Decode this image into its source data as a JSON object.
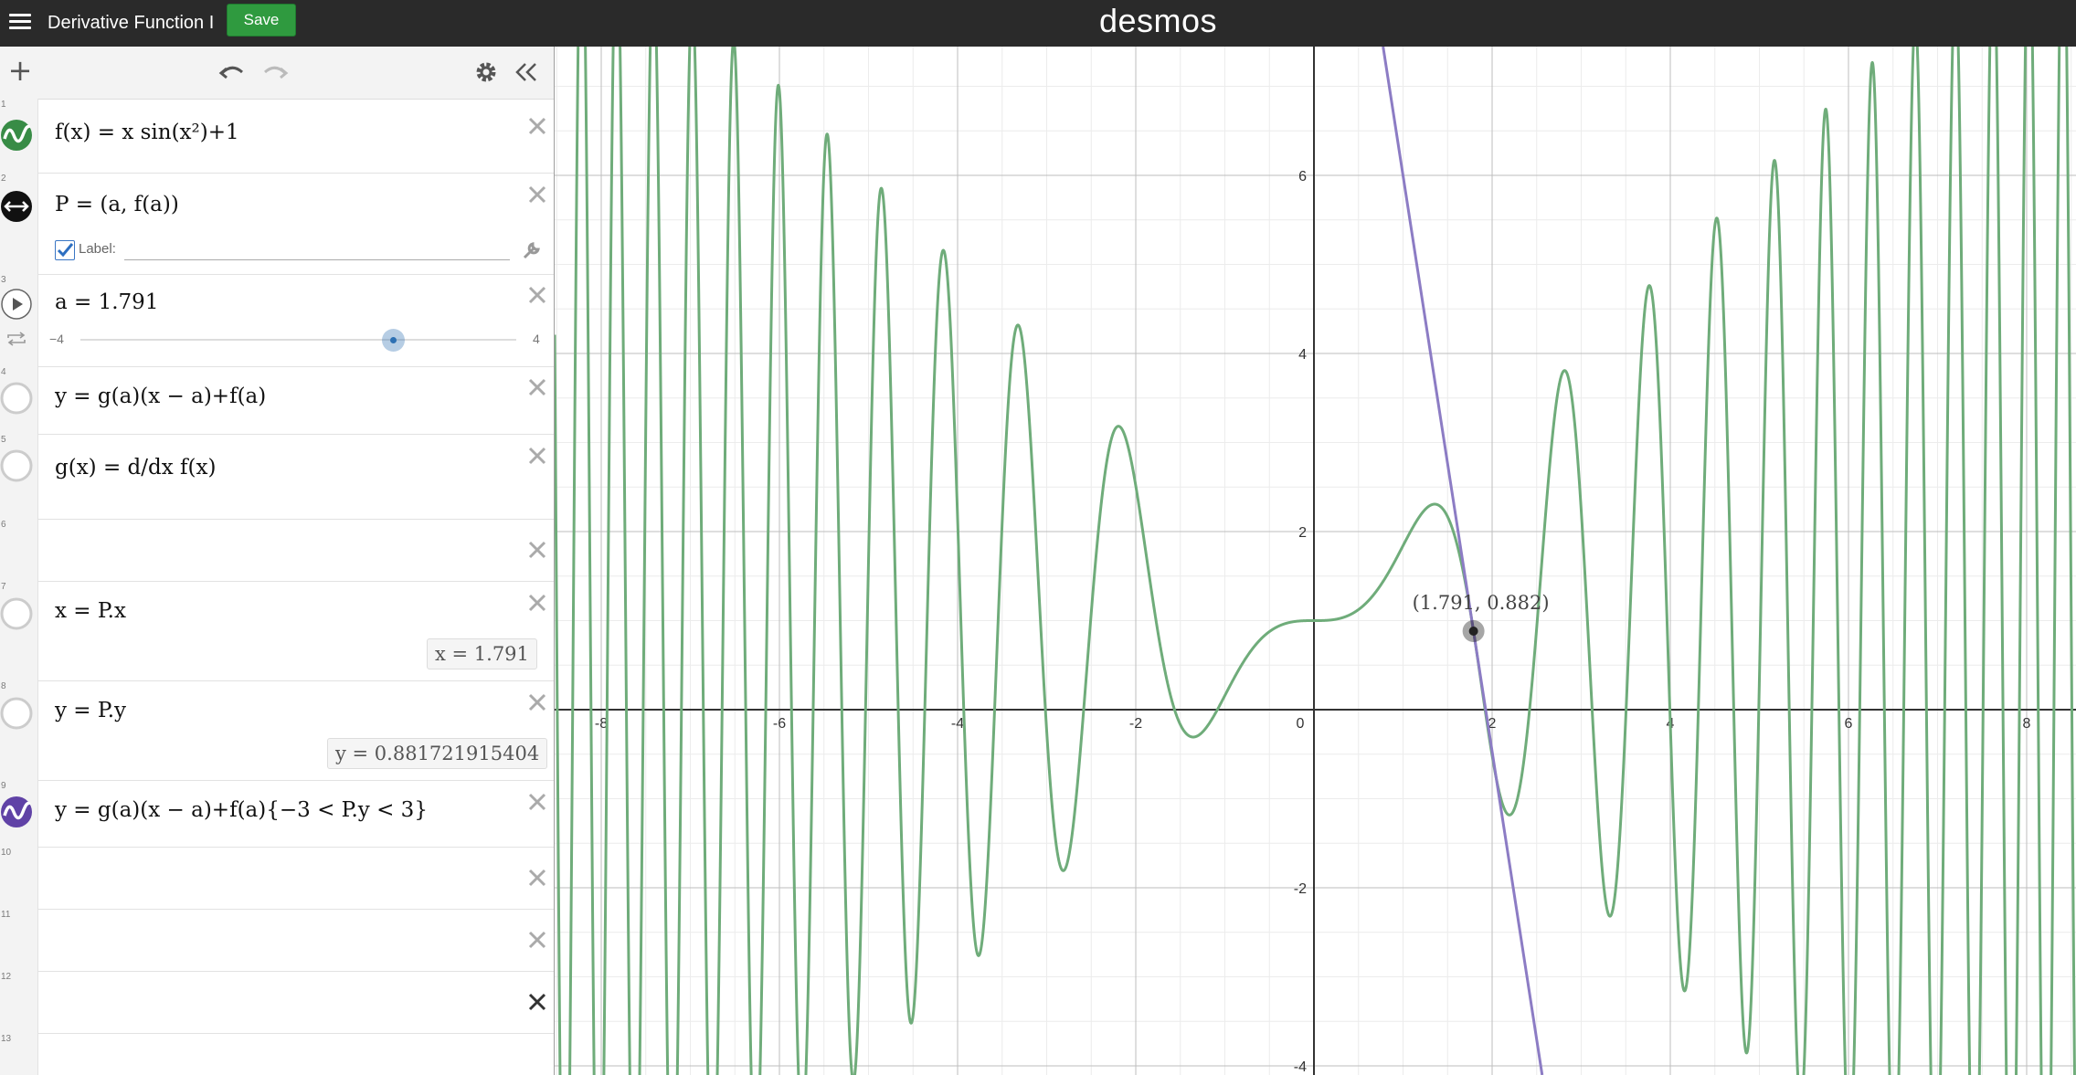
{
  "header": {
    "title": "Derivative Function I",
    "save_label": "Save",
    "logo": "desmos"
  },
  "expressions": [
    {
      "number": "1",
      "tex": "f(x) = x sin(x²)+1",
      "color": "#388c46"
    },
    {
      "number": "2",
      "tex": "P = (a, f(a))",
      "color": "#000000",
      "label_text": "Label:"
    },
    {
      "number": "3",
      "tex": "a = 1.791",
      "slider_min": "−4",
      "slider_max": "4",
      "slider_value": 1.791
    },
    {
      "number": "4",
      "tex": "y = g(a)(x − a)+f(a)"
    },
    {
      "number": "5",
      "tex": "g(x) = d/dx f(x)"
    },
    {
      "number": "6",
      "tex": ""
    },
    {
      "number": "7",
      "tex": "x = P.x",
      "eval": "x  =  1.791"
    },
    {
      "number": "8",
      "tex": "y = P.y",
      "eval": "y  =  0.881721915404"
    },
    {
      "number": "9",
      "tex": "y = g(a)(x − a)+f(a){−3 < P.y < 3}",
      "color": "#6042a6"
    },
    {
      "number": "10",
      "tex": ""
    },
    {
      "number": "11",
      "tex": ""
    },
    {
      "number": "12",
      "tex": ""
    },
    {
      "number": "13",
      "tex": ""
    }
  ],
  "graph": {
    "point_label": "(1.791, 0.882)",
    "point_x": 1.791,
    "point_y": 0.882,
    "curve_color": "#6fac7a",
    "tangent_color": "#8c7cc4",
    "x_ticks": [
      "-8",
      "-6",
      "-4",
      "-2",
      "0",
      "2",
      "4",
      "6",
      "8"
    ],
    "y_ticks": [
      "6",
      "4",
      "2",
      "-2",
      "-4"
    ]
  }
}
